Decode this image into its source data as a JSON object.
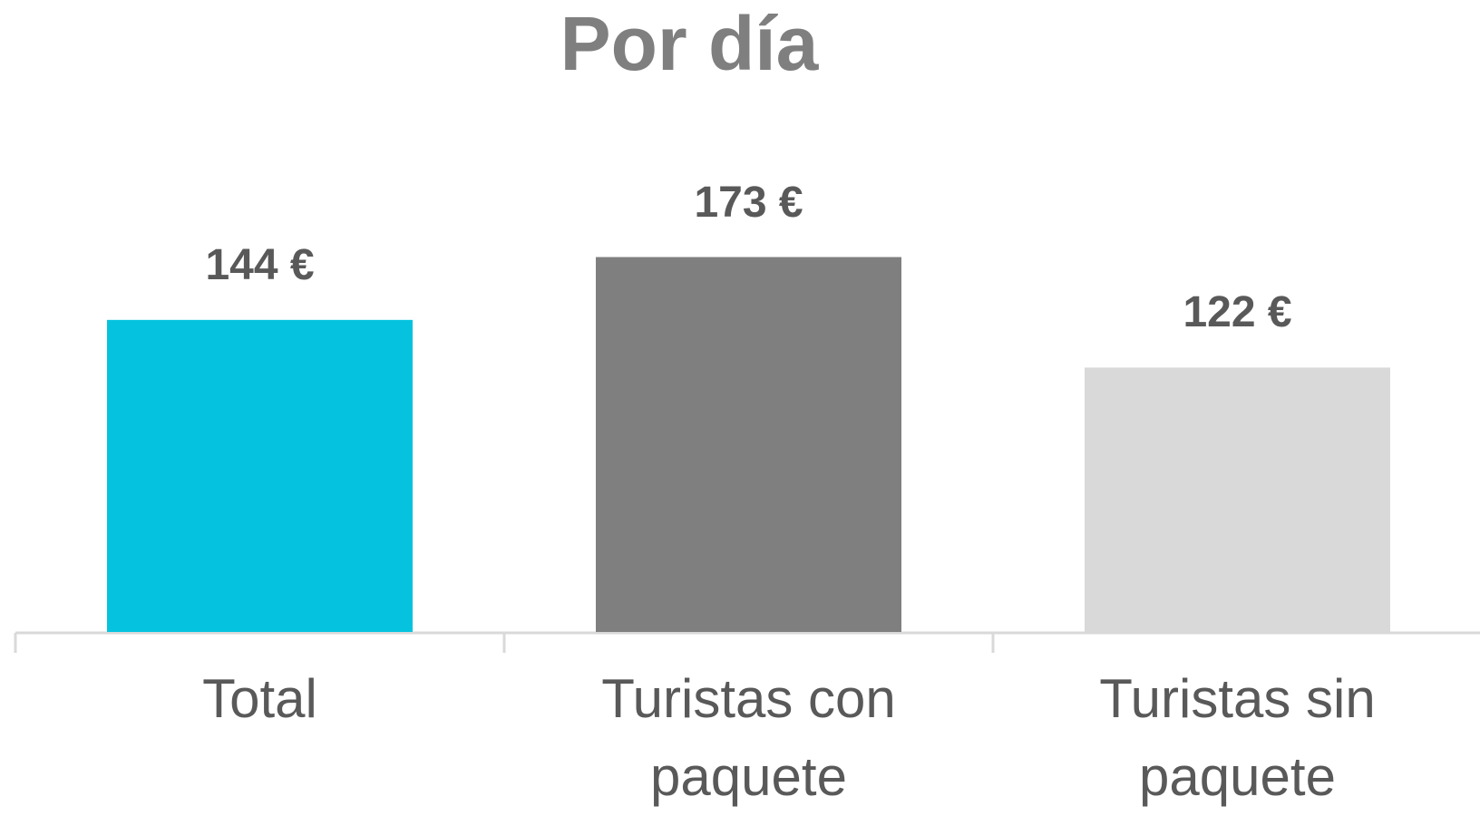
{
  "chart_data": {
    "type": "bar",
    "title": "Por día",
    "categories": [
      "Total",
      "Turistas con paquete",
      "Turistas sin paquete"
    ],
    "values": [
      144,
      173,
      122
    ],
    "value_labels": [
      "144 €",
      "173 €",
      "122 €"
    ],
    "colors": [
      "#05c3de",
      "#7f7f7f",
      "#d9d9d9"
    ]
  }
}
